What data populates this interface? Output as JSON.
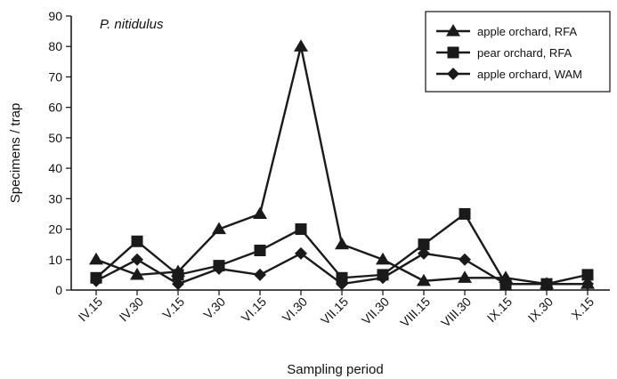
{
  "chart_data": {
    "type": "line",
    "title": "",
    "annotation": "P. nitidulus",
    "xlabel": "Sampling period",
    "ylabel": "Specimens / trap",
    "ylim": [
      0,
      90
    ],
    "yticks": [
      0,
      10,
      20,
      30,
      40,
      50,
      60,
      70,
      80,
      90
    ],
    "categories": [
      "IV.15",
      "IV.30",
      "V.15",
      "V.30",
      "VI.15",
      "VI.30",
      "VII.15",
      "VII.30",
      "VIII.15",
      "VIII.30",
      "IX.15",
      "IX.30",
      "X.15"
    ],
    "legend_position": "top-right",
    "grid": false,
    "series": [
      {
        "name": "apple orchard, RFA",
        "marker": "triangle",
        "color": "#1a1a1a",
        "values": [
          10,
          5,
          6,
          20,
          25,
          80,
          15,
          10,
          3,
          4,
          4,
          2,
          2
        ]
      },
      {
        "name": "pear orchard, RFA",
        "marker": "square",
        "color": "#1a1a1a",
        "values": [
          4,
          16,
          5,
          8,
          13,
          20,
          4,
          5,
          15,
          25,
          2,
          2,
          5
        ]
      },
      {
        "name": "apple orchard, WAM",
        "marker": "diamond",
        "color": "#1a1a1a",
        "values": [
          3,
          10,
          2,
          7,
          5,
          12,
          2,
          4,
          12,
          10,
          2,
          2,
          2
        ]
      }
    ]
  }
}
